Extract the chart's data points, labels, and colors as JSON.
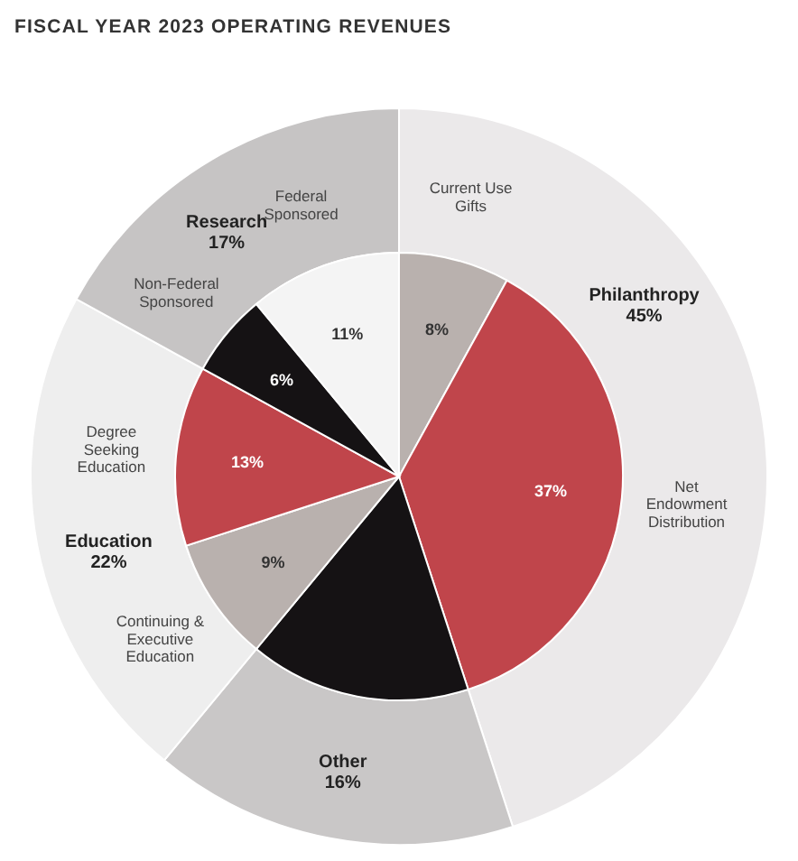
{
  "chart_data": [
    {
      "type": "donut",
      "title": "FISCAL YEAR 2023 OPERATING REVENUES",
      "categories": [
        "Philanthropy",
        "Other",
        "Education",
        "Research"
      ],
      "values": [
        45,
        16,
        22,
        17
      ],
      "value_labels": [
        "45%",
        "16%",
        "22%",
        "17%"
      ],
      "colors": [
        "#ebe9ea",
        "#c9c7c7",
        "#eeeeee",
        "#c6c4c4"
      ]
    },
    {
      "type": "pie",
      "categories": [
        "Current Use Gifts",
        "Net Endowment Distribution",
        null,
        "Continuing & Executive Education",
        "Degree Seeking Education",
        "Non-Federal Sponsored",
        "Federal Sponsored"
      ],
      "values": [
        8,
        37,
        16,
        9,
        13,
        6,
        11
      ],
      "value_labels": [
        "8%",
        "37%",
        null,
        "9%",
        "13%",
        "6%",
        "11%"
      ],
      "colors": [
        "#b9b1ae",
        "#c0454b",
        "#151214",
        "#b9b1ae",
        "#c0454b",
        "#151214",
        "#f4f4f4"
      ]
    }
  ]
}
